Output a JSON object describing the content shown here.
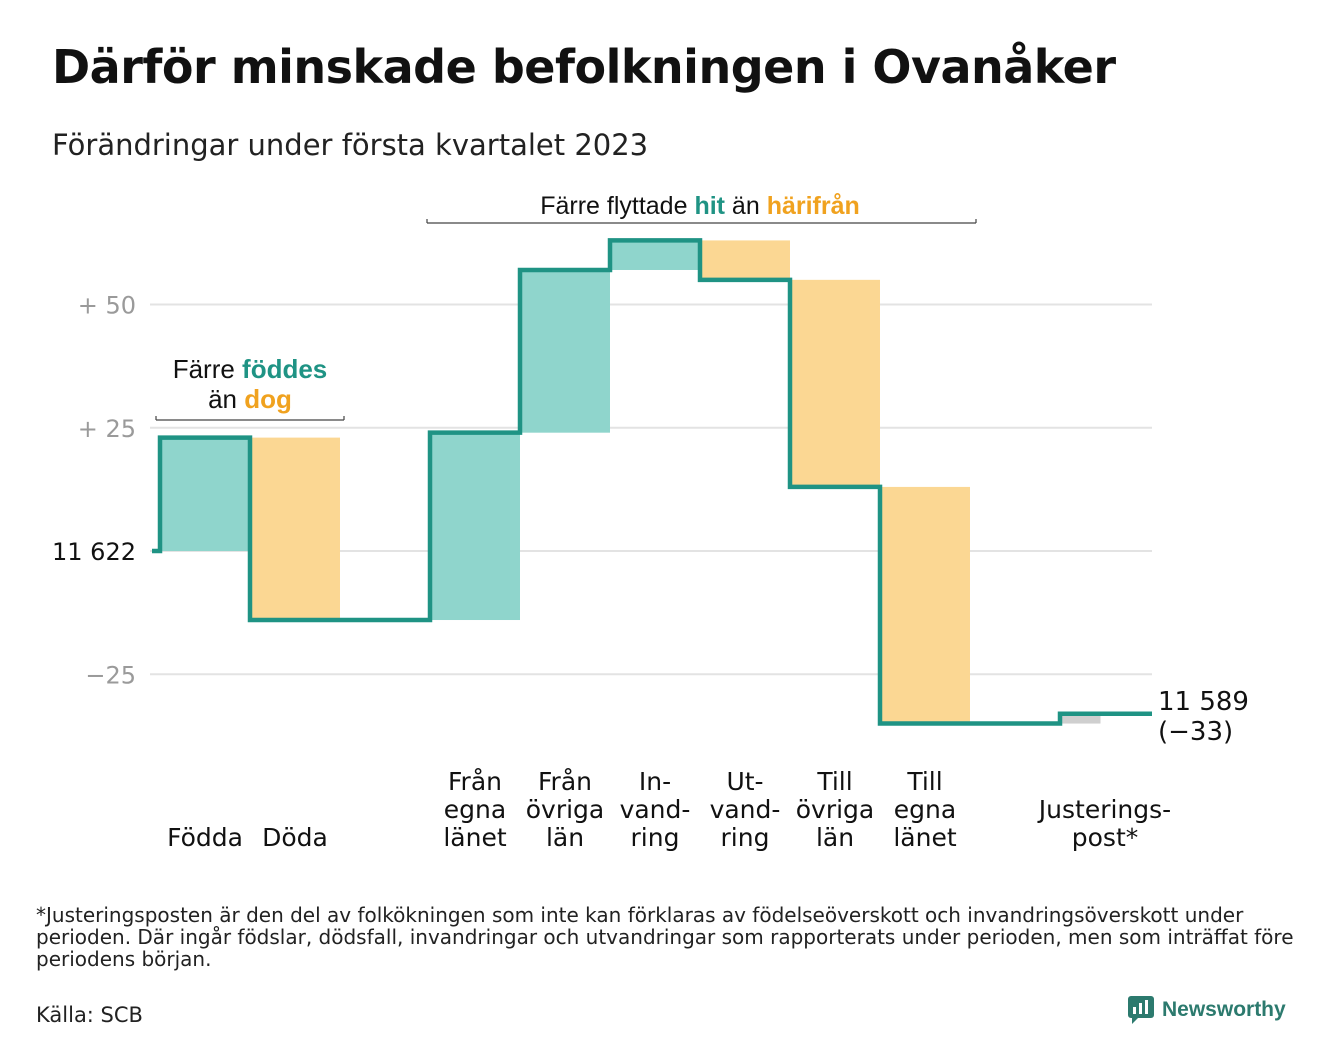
{
  "title": "Därför minskade befolkningen i Ovanåker",
  "subtitle": "Förändringar under första kvartalet 2023",
  "colors": {
    "inflow": "#8fd5cc",
    "outflow": "#fbd793",
    "adjustment": "#cfcfcf",
    "line": "#1f9384",
    "accent_teal": "#1f9384",
    "accent_orange": "#f0a21f",
    "grid": "#e3e3e3",
    "tick": "#9a9a9a"
  },
  "annotations": {
    "births_deaths": {
      "line1_prefix": "Färre ",
      "line1_highlight": "föddes",
      "line2_prefix": "än ",
      "line2_highlight": "dog"
    },
    "migration": {
      "prefix": "Färre flyttade ",
      "highlight1": "hit",
      "middle": " än ",
      "highlight2": "härifrån"
    }
  },
  "start_label": "11 622",
  "end_label_value": "11 589",
  "end_label_change": "(−33)",
  "footnote": "*Justeringsposten är den del av folkökningen som inte kan förklaras av födelseöverskott och invandringsöverskott under perioden. Där ingår födslar, dödsfall, invandringar och utvandringar som rapporterats under perioden, men som inträffat före periodens början.",
  "source": "Källa: SCB",
  "brand": "Newsworthy",
  "chart_data": {
    "type": "bar",
    "subtype": "waterfall",
    "start_value": 11622,
    "end_value": 11589,
    "net_change": -33,
    "y_ticks": [
      {
        "value": 50,
        "label": "+ 50"
      },
      {
        "value": 25,
        "label": "+ 25"
      },
      {
        "value": 0,
        "label": "11 622"
      },
      {
        "value": -25,
        "label": "−25"
      }
    ],
    "ylim": [
      -35,
      60
    ],
    "grid": true,
    "steps": [
      {
        "label": [
          "Födda"
        ],
        "value": 23,
        "kind": "inflow",
        "slot": 0
      },
      {
        "label": [
          "Döda"
        ],
        "value": -37,
        "kind": "outflow",
        "slot": 1
      },
      {
        "label": [
          "Från",
          "egna",
          "länet"
        ],
        "value": 38,
        "kind": "inflow",
        "slot": 3
      },
      {
        "label": [
          "Från",
          "övriga",
          "län"
        ],
        "value": 33,
        "kind": "inflow",
        "slot": 4
      },
      {
        "label": [
          "In-",
          "vand-",
          "ring"
        ],
        "value": 6,
        "kind": "inflow",
        "slot": 5
      },
      {
        "label": [
          "Ut-",
          "vand-",
          "ring"
        ],
        "value": -8,
        "kind": "outflow",
        "slot": 6
      },
      {
        "label": [
          "Till",
          "övriga",
          "län"
        ],
        "value": -42,
        "kind": "outflow",
        "slot": 7
      },
      {
        "label": [
          "Till",
          "egna",
          "länet"
        ],
        "value": -48,
        "kind": "outflow",
        "slot": 8
      },
      {
        "label": [
          "Justerings-",
          "post*"
        ],
        "value": 2,
        "kind": "adjustment",
        "slot": 10
      }
    ]
  }
}
